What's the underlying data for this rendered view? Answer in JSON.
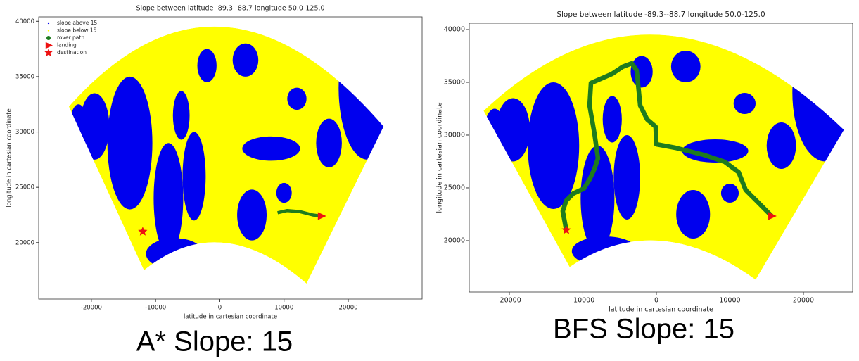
{
  "chart_data": [
    {
      "type": "scatter",
      "title": "Slope between latitude -89.3--88.7 longitude 50.0-125.0",
      "x_label": "latitude in cartesian coordinate",
      "y_label": "longitude in cartesian coordinate",
      "xlim": [
        -28200,
        31500
      ],
      "ylim": [
        14900,
        40400
      ],
      "xticks": [
        -20000,
        -10000,
        0,
        10000,
        20000
      ],
      "yticks": [
        20000,
        25000,
        30000,
        35000,
        40000
      ],
      "legend": "upper left",
      "series": [
        {
          "name": "slope above 15",
          "color": "#0000ee",
          "marker": "dot"
        },
        {
          "name": "slope below 15",
          "color": "#ffff00",
          "marker": "dot"
        },
        {
          "name": "rover path",
          "color": "#1e7b1e",
          "marker": "circle",
          "x": [
            9000,
            10500,
            12500,
            14500,
            15800
          ],
          "values": [
            22700,
            22900,
            22800,
            22500,
            22400
          ]
        },
        {
          "name": "landing",
          "color": "#ee1111",
          "marker": "triangle",
          "x": [
            15800
          ],
          "values": [
            22400
          ]
        },
        {
          "name": "destination",
          "color": "#ee1111",
          "marker": "star",
          "x": [
            -12000
          ],
          "values": [
            21000
          ]
        }
      ],
      "caption": "A* Slope: 15"
    },
    {
      "type": "scatter",
      "title": "Slope between latitude -89.3--88.7 longitude 50.0-125.0",
      "x_label": "latitude in cartesian coordinate",
      "y_label": "longitude in cartesian coordinate",
      "xlim": [
        -25450,
        26700
      ],
      "ylim": [
        15130,
        40600
      ],
      "xticks": [
        -20000,
        -10000,
        0,
        10000,
        20000
      ],
      "yticks": [
        20000,
        25000,
        30000,
        35000,
        40000
      ],
      "series": [
        {
          "color": "#0000ee",
          "marker": "dot"
        },
        {
          "color": "#ffff00",
          "marker": "dot"
        },
        {
          "color": "#1e7b1e",
          "marker": "circle",
          "x": [
            -12250,
            -12730,
            -12250,
            -11290,
            -9860,
            -9090,
            -8420,
            -7940,
            -8420,
            -9090,
            -8900,
            -6030,
            -4590,
            -3350,
            -2680,
            -2200,
            -1240,
            -100,
            0,
            2580,
            6410,
            9280,
            11200,
            12150,
            13590,
            15690
          ],
          "values": [
            21000,
            22800,
            23800,
            24470,
            24930,
            25800,
            26800,
            27800,
            30130,
            32800,
            34930,
            35800,
            36470,
            36800,
            36130,
            32800,
            31470,
            30800,
            29130,
            28800,
            28130,
            27470,
            26470,
            24800,
            23800,
            22330
          ]
        },
        {
          "color": "#ee1111",
          "marker": "triangle",
          "x": [
            15690
          ],
          "values": [
            22330
          ]
        },
        {
          "color": "#ee1111",
          "marker": "star",
          "x": [
            -12250
          ],
          "values": [
            21000
          ]
        }
      ],
      "caption": "BFS Slope: 15"
    }
  ]
}
